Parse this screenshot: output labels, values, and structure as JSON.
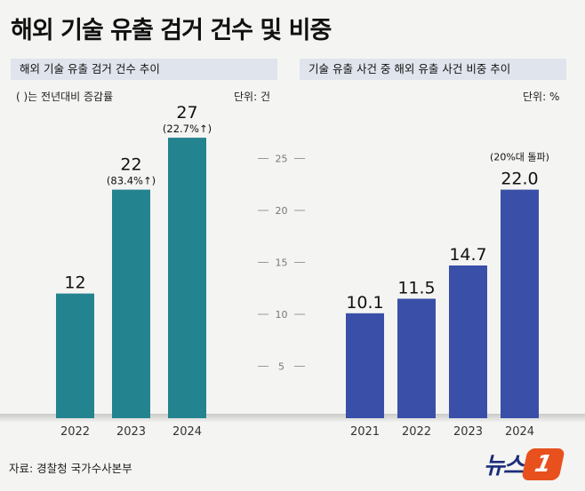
{
  "title": "해외 기술 유출 검거 건수 및 비중",
  "left_panel": {
    "header": "해외 기술 유출 검거 건수 추이",
    "note": "( )는 전년대비 증감률",
    "unit": "단위: 건"
  },
  "right_panel": {
    "header": "기술 유출 사건 중 해외 유출 사건 비중 추이",
    "unit": "단위: %"
  },
  "footer": {
    "source": "자료: 경찰청 국가수사본부",
    "logo_text": "뉴스",
    "logo_badge": "1"
  },
  "chart_data": [
    {
      "type": "bar",
      "title": "해외 기술 유출 검거 건수 추이",
      "categories": [
        "2022",
        "2023",
        "2024"
      ],
      "values": [
        12,
        22,
        27
      ],
      "value_labels": [
        "12",
        "22",
        "27"
      ],
      "annotations": [
        "",
        "(83.4%↑)",
        "(22.7%↑)"
      ],
      "ylim": [
        0,
        28.5
      ],
      "color": "#23838f",
      "unit": "건"
    },
    {
      "type": "bar",
      "title": "기술 유출 사건 중 해외 유출 사건 비중 추이",
      "categories": [
        "2021",
        "2022",
        "2023",
        "2024"
      ],
      "values": [
        10.1,
        11.5,
        14.7,
        22.0
      ],
      "value_labels": [
        "10.1",
        "11.5",
        "14.7",
        "22.0"
      ],
      "annotations": [
        "",
        "",
        "",
        "(20%대 돌파)"
      ],
      "yticks": [
        "25",
        "20",
        "15",
        "10",
        "5"
      ],
      "ylim": [
        0,
        28.5
      ],
      "color": "#3a4fa8",
      "unit": "%"
    }
  ]
}
